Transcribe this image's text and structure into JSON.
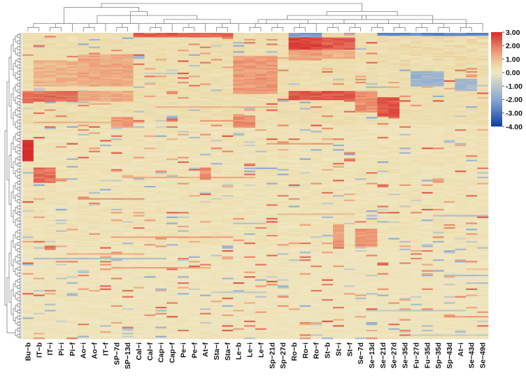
{
  "chart_data": {
    "type": "heatmap",
    "title": "",
    "xlabel": "",
    "ylabel": "",
    "row_count": 200,
    "columns": [
      "Bu−b",
      "IT−b",
      "IT−i",
      "Pi−i",
      "Pi−f",
      "Ao−i",
      "Ao−f",
      "IT−f",
      "SP−7d",
      "SP−13d",
      "Cal−i",
      "Cal−f",
      "Cap−i",
      "Cap−f",
      "Pe−i",
      "Pe−f",
      "At−f",
      "Sta−i",
      "Sta−f",
      "Le−b",
      "Le−i",
      "Le−f",
      "Sp−21d",
      "Sp−27d",
      "Ro−b",
      "Ro−i",
      "Ro−f",
      "St−b",
      "St−i",
      "St−f",
      "Se−7d",
      "Se−13d",
      "Se−21d",
      "Se−27d",
      "Se−35d",
      "Fu−27d",
      "Fu−35d",
      "Sp−35d",
      "Sp−43d",
      "At−i",
      "Se−43d",
      "Se−49d"
    ],
    "color_scale": {
      "min": -4,
      "max": 3,
      "stops": [
        {
          "value": -4,
          "color": "#0b3ea6"
        },
        {
          "value": -2,
          "color": "#8aa8d2"
        },
        {
          "value": 0,
          "color": "#f0e6c0"
        },
        {
          "value": 0.5,
          "color": "#ecdba9"
        },
        {
          "value": 1.5,
          "color": "#ee9e78"
        },
        {
          "value": 3,
          "color": "#d62b2b"
        }
      ],
      "ticks": [
        "3.00",
        "2.00",
        "1.00",
        "0.00",
        "-1.00",
        "-2.00",
        "-3.00",
        "-4.00"
      ]
    },
    "column_dendrogram": [
      [
        0,
        1
      ],
      [
        2,
        3
      ],
      [
        4,
        43
      ],
      [
        5,
        6
      ],
      [
        7,
        45
      ],
      [
        8,
        9
      ],
      [
        10,
        47
      ],
      [
        11,
        12
      ],
      [
        13,
        49
      ],
      [
        14,
        15
      ],
      [
        16,
        51
      ],
      [
        17,
        18
      ],
      [
        19,
        53
      ],
      [
        50,
        54
      ],
      [
        46,
        55
      ],
      [
        48,
        56
      ],
      [
        44,
        57
      ],
      [
        20,
        21
      ],
      [
        22,
        23
      ],
      [
        59,
        60
      ],
      [
        24,
        25
      ],
      [
        26,
        62
      ],
      [
        61,
        63
      ],
      [
        27,
        28
      ],
      [
        29,
        30
      ],
      [
        65,
        66
      ],
      [
        31,
        32
      ],
      [
        33,
        34
      ],
      [
        68,
        69
      ],
      [
        67,
        70
      ],
      [
        64,
        71
      ],
      [
        35,
        36
      ],
      [
        37,
        38
      ],
      [
        73,
        74
      ],
      [
        39,
        40
      ],
      [
        41,
        42
      ],
      [
        76,
        77
      ],
      [
        75,
        78
      ],
      [
        72,
        79
      ],
      [
        80,
        58
      ]
    ],
    "blocks": [
      {
        "cols": [
          24,
          25,
          26
        ],
        "rows": [
          0,
          3
        ],
        "value": -2.2
      },
      {
        "cols": [
          24,
          25,
          26
        ],
        "rows": [
          3,
          11
        ],
        "value": 2.7
      },
      {
        "cols": [
          24,
          25,
          26
        ],
        "rows": [
          11,
          18
        ],
        "value": 1.4
      },
      {
        "cols": [
          27,
          28,
          29
        ],
        "rows": [
          3,
          11
        ],
        "value": 2.4
      },
      {
        "cols": [
          27,
          28,
          29
        ],
        "rows": [
          11,
          17
        ],
        "value": 1.2
      },
      {
        "cols": [
          24,
          25,
          26,
          27,
          28,
          29
        ],
        "rows": [
          38,
          44
        ],
        "value": 2.4
      },
      {
        "cols": [
          0,
          1,
          2,
          3,
          4
        ],
        "rows": [
          38,
          45
        ],
        "value": 2.1
      },
      {
        "cols": [
          5,
          6,
          7,
          8,
          9
        ],
        "rows": [
          38,
          45
        ],
        "value": 1.3
      },
      {
        "cols": [
          19,
          20,
          21,
          22
        ],
        "rows": [
          15,
          40
        ],
        "value": 1.5
      },
      {
        "cols": [
          5,
          6,
          7,
          8,
          9
        ],
        "rows": [
          14,
          35
        ],
        "value": 1.3
      },
      {
        "cols": [
          1,
          2,
          3,
          4
        ],
        "rows": [
          18,
          35
        ],
        "value": 1.1
      },
      {
        "cols": [
          10,
          11,
          12,
          13,
          14,
          15,
          16,
          17,
          18
        ],
        "rows": [
          0,
          3
        ],
        "value": 2.3
      },
      {
        "cols": [
          32,
          33
        ],
        "rows": [
          42,
          55
        ],
        "value": 2.5
      },
      {
        "cols": [
          30,
          31
        ],
        "rows": [
          38,
          52
        ],
        "value": 1.6
      },
      {
        "cols": [
          0
        ],
        "rows": [
          70,
          84
        ],
        "value": 3.0
      },
      {
        "cols": [
          1,
          2
        ],
        "rows": [
          88,
          98
        ],
        "value": 2.1
      },
      {
        "cols": [
          30,
          31
        ],
        "rows": [
          128,
          140
        ],
        "value": 1.6
      },
      {
        "cols": [
          32,
          33,
          34,
          35,
          36,
          37,
          38,
          39,
          40,
          41
        ],
        "rows": [
          2,
          22
        ],
        "value": 0.4
      },
      {
        "cols": [
          35,
          36,
          37
        ],
        "rows": [
          25,
          35
        ],
        "value": -1.6
      },
      {
        "cols": [
          39,
          40
        ],
        "rows": [
          30,
          38
        ],
        "value": -1.4
      },
      {
        "cols": [
          32,
          33,
          34,
          35,
          36,
          37,
          38,
          39,
          40,
          41
        ],
        "rows": [
          0,
          2
        ],
        "value": -2.6
      },
      {
        "cols": [
          8,
          9
        ],
        "rows": [
          55,
          62
        ],
        "value": 1.5
      },
      {
        "cols": [
          19,
          20
        ],
        "rows": [
          54,
          62
        ],
        "value": 1.8
      },
      {
        "cols": [
          16
        ],
        "rows": [
          88,
          96
        ],
        "value": 1.6
      },
      {
        "cols": [
          28
        ],
        "rows": [
          125,
          140
        ],
        "value": 1.5
      }
    ]
  }
}
